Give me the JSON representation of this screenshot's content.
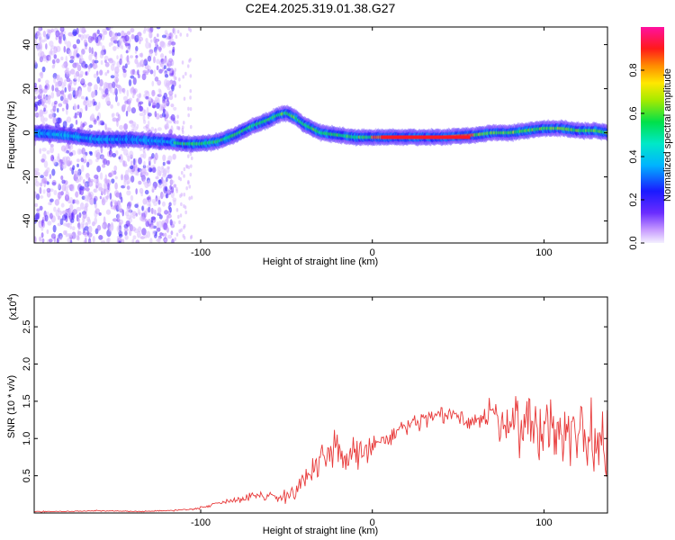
{
  "figure_title": "C2E4.2025.319.01.38.G27",
  "colors": {
    "snr_line": "#e83a3a",
    "frame": "#000000",
    "spectrogram_low": "#9b59ff",
    "spectrogram_mid": "#00d070",
    "spectrogram_high": "#ff2020"
  },
  "chart_data": [
    {
      "type": "heatmap",
      "title": "C2E4.2025.319.01.38.G27",
      "xlabel": "Height of straight line (km)",
      "ylabel": "Frequency (Hz)",
      "xlim": [
        -197,
        137
      ],
      "ylim": [
        -50,
        48
      ],
      "xticks": [
        -100,
        0,
        100
      ],
      "xtick_labels": [
        "-100",
        "0",
        "100"
      ],
      "yticks": [
        -40,
        -20,
        0,
        20,
        40
      ],
      "ytick_labels": [
        "-40",
        "-20",
        "0",
        "20",
        "40"
      ],
      "grid": false,
      "colorbar": {
        "label": "Normalized spectral amplitude",
        "range": [
          0,
          1
        ],
        "ticks": [
          0.0,
          0.2,
          0.4,
          0.6,
          0.8
        ],
        "tick_labels": [
          "0.0",
          "0.2",
          "0.4",
          "0.6",
          "0.8"
        ],
        "colormap": "rainbow (magenta-blue-cyan-green-yellow-red-pink)"
      },
      "ridge": {
        "x": [
          -197,
          -180,
          -160,
          -140,
          -120,
          -110,
          -100,
          -90,
          -80,
          -70,
          -60,
          -55,
          -50,
          -45,
          -40,
          -35,
          -30,
          -20,
          -10,
          0,
          10,
          20,
          40,
          60,
          70,
          80,
          90,
          100,
          110,
          120,
          130,
          137
        ],
        "frequency": [
          0,
          -1,
          -3,
          -3,
          -4,
          -5,
          -5,
          -4,
          -1,
          3,
          6,
          8,
          9,
          7,
          4,
          2,
          0,
          -1,
          -2,
          -2,
          -2,
          -2,
          -2,
          -1,
          0,
          0,
          1,
          2,
          2,
          1,
          1,
          0
        ]
      }
    },
    {
      "type": "line",
      "xlabel": "Height of straight line (km)",
      "ylabel": "SNR (10 * v/v)",
      "y_multiplier_label": "(x10",
      "y_multiplier_exp": "4",
      "y_multiplier_close": ")",
      "xlim": [
        -197,
        137
      ],
      "ylim": [
        0,
        2.9
      ],
      "xticks": [
        -100,
        0,
        100
      ],
      "xtick_labels": [
        "-100",
        "0",
        "100"
      ],
      "yticks": [
        0.5,
        1.0,
        1.5,
        2.0,
        2.5
      ],
      "ytick_labels": [
        "0.5",
        "1.0",
        "1.5",
        "2.0",
        "2.5"
      ],
      "grid": false,
      "series": [
        {
          "x": [
            -197,
            -180,
            -160,
            -140,
            -120,
            -105,
            -95,
            -85,
            -75,
            -65,
            -55,
            -45,
            -40,
            -35,
            -30,
            -25,
            -20,
            -15,
            -10,
            -5,
            0,
            5,
            10,
            15,
            20,
            25,
            30,
            40,
            50,
            60,
            70,
            80,
            90,
            100,
            110,
            120,
            130,
            137
          ],
          "values": [
            0.02,
            0.02,
            0.03,
            0.02,
            0.03,
            0.05,
            0.1,
            0.16,
            0.2,
            0.25,
            0.2,
            0.3,
            0.45,
            0.55,
            0.65,
            0.75,
            0.82,
            0.75,
            0.85,
            0.8,
            0.9,
            0.95,
            1.0,
            1.1,
            1.15,
            1.2,
            1.25,
            1.3,
            1.3,
            1.25,
            1.3,
            1.25,
            1.2,
            1.15,
            1.1,
            1.05,
            1.0,
            1.0
          ],
          "fluctuation": [
            0.01,
            0.01,
            0.01,
            0.01,
            0.01,
            0.02,
            0.03,
            0.05,
            0.07,
            0.1,
            0.12,
            0.18,
            0.25,
            0.3,
            0.35,
            0.4,
            0.45,
            0.45,
            0.35,
            0.3,
            0.25,
            0.22,
            0.2,
            0.2,
            0.2,
            0.2,
            0.2,
            0.18,
            0.2,
            0.3,
            0.4,
            0.5,
            0.6,
            0.7,
            0.75,
            0.85,
            0.95,
            1.0
          ]
        }
      ]
    }
  ]
}
